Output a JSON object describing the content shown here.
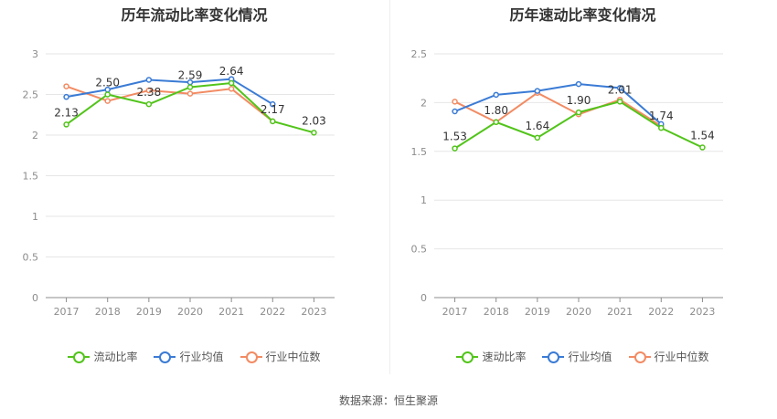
{
  "footer": {
    "source": "数据来源：恒生聚源"
  },
  "chart_data": [
    {
      "type": "line",
      "title": "历年流动比率变化情况",
      "categories": [
        "2017",
        "2018",
        "2019",
        "2020",
        "2021",
        "2022",
        "2023"
      ],
      "ylim": [
        0,
        3
      ],
      "yticks": [
        0,
        0.5,
        1,
        1.5,
        2,
        2.5,
        3
      ],
      "ytick_labels": [
        "0",
        "0.5",
        "1",
        "1.5",
        "2",
        "2.5",
        "3"
      ],
      "grid": true,
      "legend_position": "bottom",
      "series": [
        {
          "name": "流动比率",
          "color": "#52c41a",
          "labeled": true,
          "values": [
            2.13,
            2.5,
            2.38,
            2.59,
            2.64,
            2.17,
            2.03
          ],
          "labels": [
            "2.13",
            "2.50",
            "2.38",
            "2.59",
            "2.64",
            "2.17",
            "2.03"
          ]
        },
        {
          "name": "行业均值",
          "color": "#3a7bd5",
          "labeled": false,
          "values": [
            2.47,
            2.56,
            2.68,
            2.65,
            2.69,
            2.38,
            null
          ]
        },
        {
          "name": "行业中位数",
          "color": "#f28b63",
          "labeled": false,
          "values": [
            2.6,
            2.42,
            2.55,
            2.51,
            2.57,
            2.17,
            null
          ]
        }
      ]
    },
    {
      "type": "line",
      "title": "历年速动比率变化情况",
      "categories": [
        "2017",
        "2018",
        "2019",
        "2020",
        "2021",
        "2022",
        "2023"
      ],
      "ylim": [
        0,
        2.5
      ],
      "yticks": [
        0,
        0.5,
        1,
        1.5,
        2,
        2.5
      ],
      "ytick_labels": [
        "0",
        "0.5",
        "1",
        "1.5",
        "2",
        "2.5"
      ],
      "grid": true,
      "legend_position": "bottom",
      "series": [
        {
          "name": "速动比率",
          "color": "#52c41a",
          "labeled": true,
          "values": [
            1.53,
            1.8,
            1.64,
            1.9,
            2.01,
            1.74,
            1.54
          ],
          "labels": [
            "1.53",
            "1.80",
            "1.64",
            "1.90",
            "2.01",
            "1.74",
            "1.54"
          ]
        },
        {
          "name": "行业均值",
          "color": "#3a7bd5",
          "labeled": false,
          "values": [
            1.91,
            2.08,
            2.12,
            2.19,
            2.15,
            1.78,
            null
          ]
        },
        {
          "name": "行业中位数",
          "color": "#f28b63",
          "labeled": false,
          "values": [
            2.01,
            1.8,
            2.1,
            1.88,
            2.03,
            1.76,
            null
          ]
        }
      ]
    }
  ]
}
